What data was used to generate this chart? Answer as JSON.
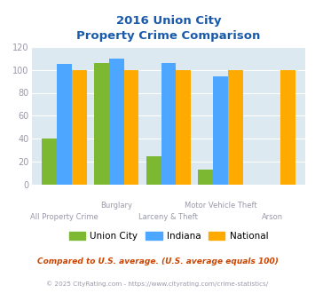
{
  "title_line1": "2016 Union City",
  "title_line2": "Property Crime Comparison",
  "cat_labels_top": [
    "",
    "Burglary",
    "",
    "Motor Vehicle Theft",
    ""
  ],
  "cat_labels_bot": [
    "All Property Crime",
    "",
    "Larceny & Theft",
    "",
    "Arson"
  ],
  "union_city": [
    40,
    106,
    25,
    13,
    0
  ],
  "indiana": [
    105,
    110,
    106,
    94,
    0
  ],
  "national": [
    100,
    100,
    100,
    100,
    100
  ],
  "color_union_city": "#7db832",
  "color_indiana": "#4da6ff",
  "color_national": "#ffaa00",
  "ylim": [
    0,
    120
  ],
  "yticks": [
    0,
    20,
    40,
    60,
    80,
    100,
    120
  ],
  "background_color": "#dce9f0",
  "title_color": "#1a5aab",
  "axis_label_color": "#9999aa",
  "footnote1": "Compared to U.S. average. (U.S. average equals 100)",
  "footnote2": "© 2025 CityRating.com - https://www.cityrating.com/crime-statistics/",
  "footnote1_color": "#cc4400",
  "footnote2_color": "#9999aa",
  "legend_labels": [
    "Union City",
    "Indiana",
    "National"
  ]
}
